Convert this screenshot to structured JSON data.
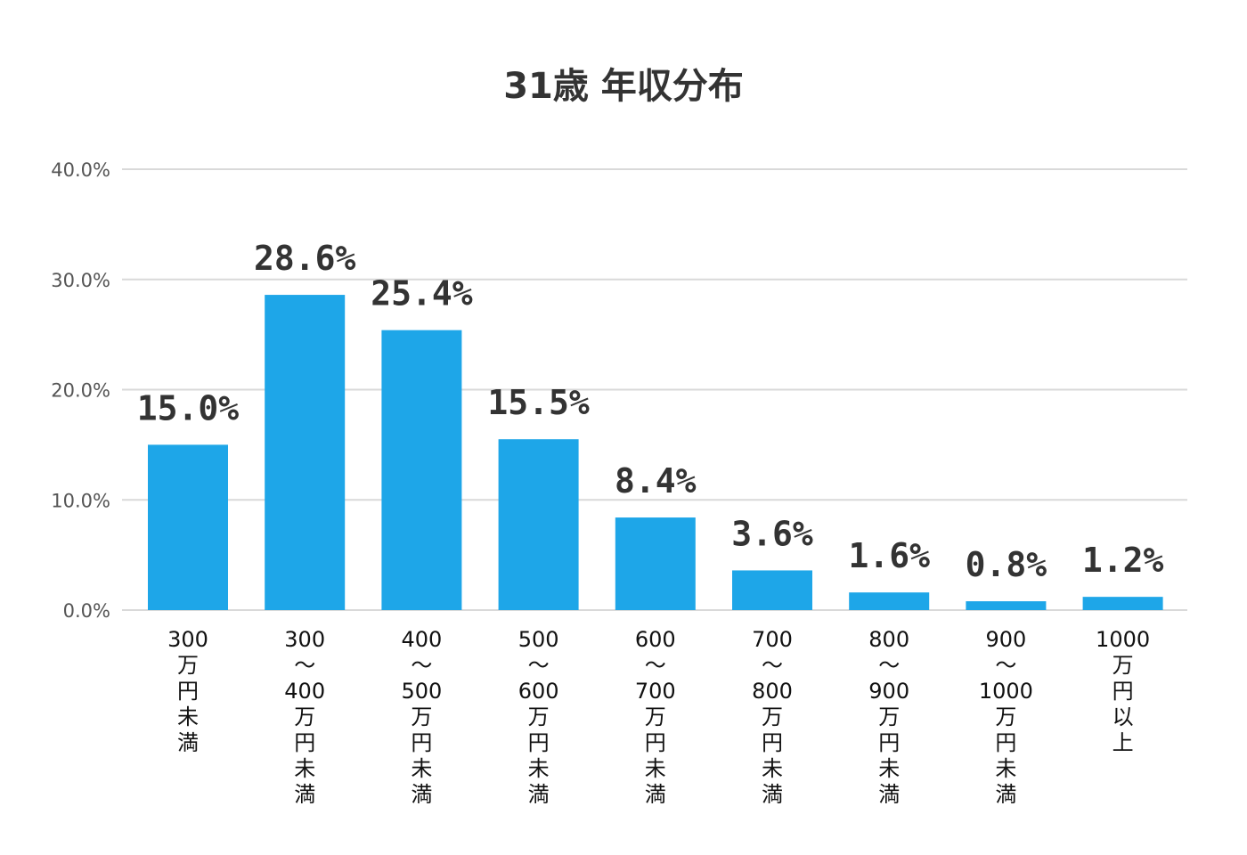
{
  "chart_data": {
    "type": "bar",
    "title": "31歳 年収分布",
    "categories": [
      [
        "300",
        "万",
        "円",
        "未",
        "満"
      ],
      [
        "300",
        "〜",
        "400",
        "万",
        "円",
        "未",
        "満"
      ],
      [
        "400",
        "〜",
        "500",
        "万",
        "円",
        "未",
        "満"
      ],
      [
        "500",
        "〜",
        "600",
        "万",
        "円",
        "未",
        "満"
      ],
      [
        "600",
        "〜",
        "700",
        "万",
        "円",
        "未",
        "満"
      ],
      [
        "700",
        "〜",
        "800",
        "万",
        "円",
        "未",
        "満"
      ],
      [
        "800",
        "〜",
        "900",
        "万",
        "円",
        "未",
        "満"
      ],
      [
        "900",
        "〜",
        "1000",
        "万",
        "円",
        "未",
        "満"
      ],
      [
        "1000",
        "万",
        "円",
        "以",
        "上"
      ]
    ],
    "values": [
      15.0,
      28.6,
      25.4,
      15.5,
      8.4,
      3.6,
      1.6,
      0.8,
      1.2
    ],
    "value_labels": [
      "15.0%",
      "28.6%",
      "25.4%",
      "15.5%",
      "8.4%",
      "3.6%",
      "1.6%",
      "0.8%",
      "1.2%"
    ],
    "y_ticks": [
      0,
      10,
      20,
      30,
      40
    ],
    "y_tick_labels": [
      "0.0%",
      "10.0%",
      "20.0%",
      "30.0%",
      "40.0%"
    ],
    "ylim": [
      0,
      40
    ],
    "xlabel": "",
    "ylabel": "",
    "grid": true,
    "legend": "none",
    "bar_color": "#1ea6e8",
    "grid_color": "#d9d9d9"
  }
}
